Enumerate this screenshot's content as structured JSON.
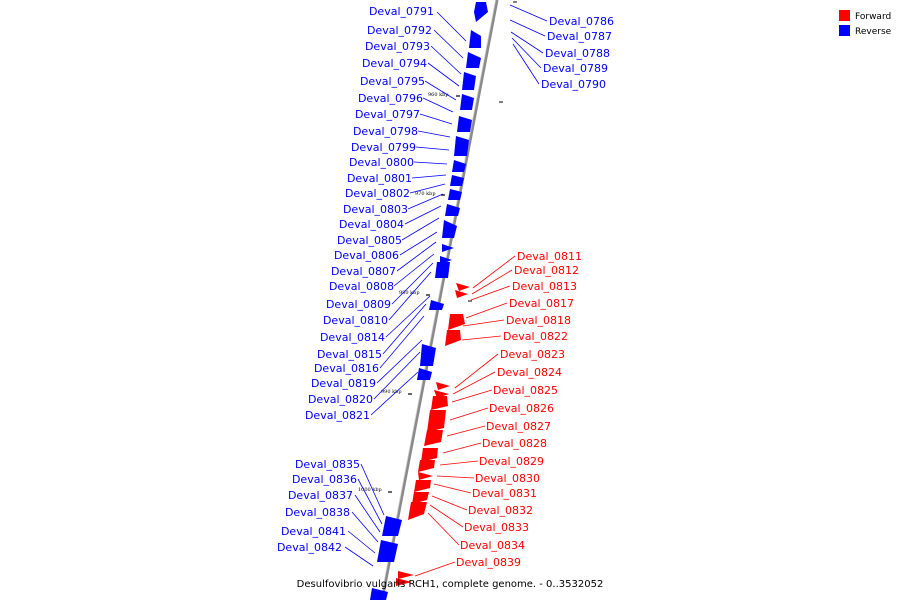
{
  "caption": "Desulfovibrio vulgaris RCH1, complete genome. - 0..3532052",
  "legend": {
    "forward": {
      "label": "Forward",
      "color": "#ff0000"
    },
    "reverse": {
      "label": "Reverse",
      "color": "#0000ff"
    }
  },
  "colors": {
    "forward": "#ff0000",
    "reverse": "#0000ff",
    "axis": "#808080"
  },
  "ticks": [
    "960 kbp",
    "970 kbp",
    "980 kbp",
    "990 kbp",
    "1000 kbp"
  ],
  "labels": {
    "left_reverse": [
      "Deval_0791",
      "Deval_0792",
      "Deval_0793",
      "Deval_0794",
      "Deval_0795",
      "Deval_0796",
      "Deval_0797",
      "Deval_0798",
      "Deval_0799",
      "Deval_0800",
      "Deval_0801",
      "Deval_0802",
      "Deval_0803",
      "Deval_0804",
      "Deval_0805",
      "Deval_0806",
      "Deval_0807",
      "Deval_0808",
      "Deval_0809",
      "Deval_0810",
      "Deval_0814",
      "Deval_0815",
      "Deval_0816",
      "Deval_0819",
      "Deval_0820",
      "Deval_0821",
      "Deval_0835",
      "Deval_0836",
      "Deval_0837",
      "Deval_0838",
      "Deval_0841",
      "Deval_0842"
    ],
    "right_reverse": [
      "Deval_0786",
      "Deval_0787",
      "Deval_0788",
      "Deval_0789",
      "Deval_0790"
    ],
    "right_forward": [
      "Deval_0811",
      "Deval_0812",
      "Deval_0813",
      "Deval_0817",
      "Deval_0818",
      "Deval_0822",
      "Deval_0823",
      "Deval_0824",
      "Deval_0825",
      "Deval_0826",
      "Deval_0827",
      "Deval_0828",
      "Deval_0829",
      "Deval_0830",
      "Deval_0831",
      "Deval_0832",
      "Deval_0833",
      "Deval_0834",
      "Deval_0839"
    ]
  }
}
